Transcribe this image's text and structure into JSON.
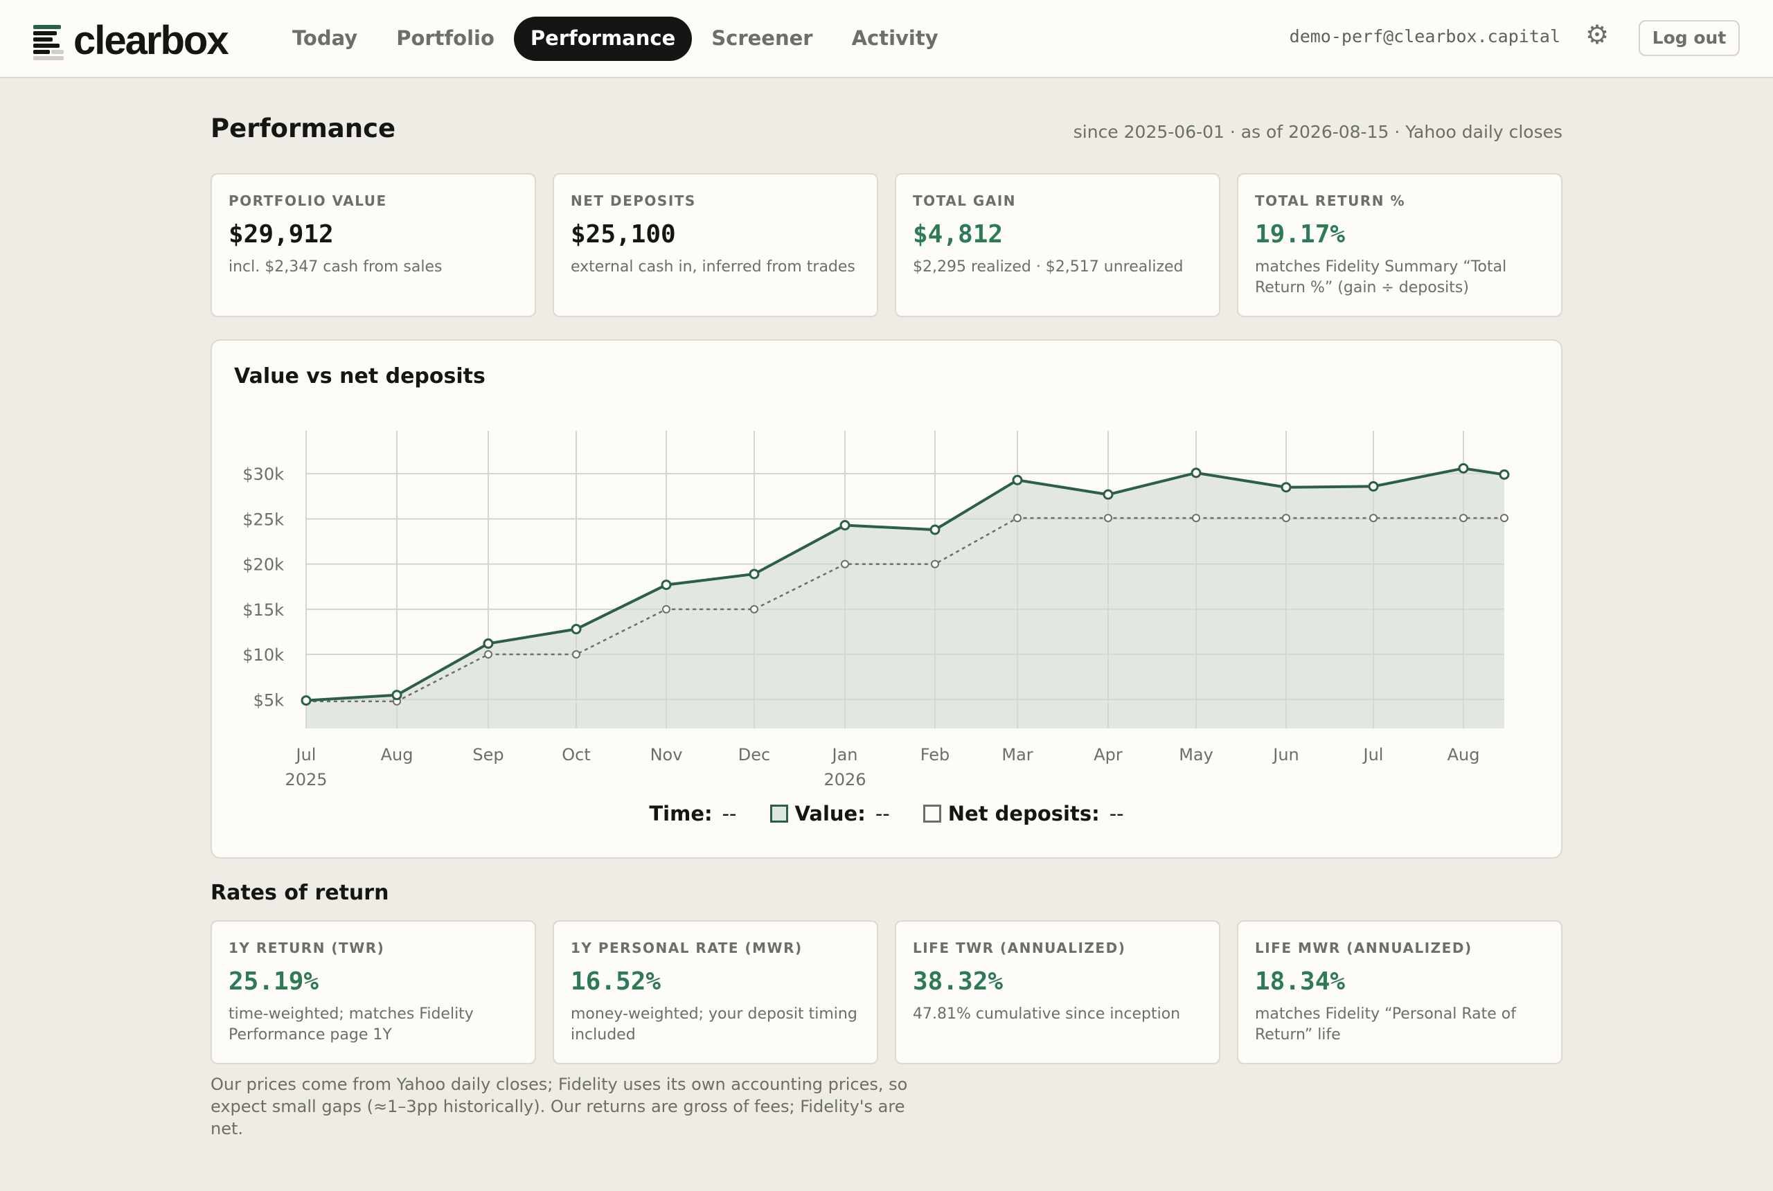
{
  "brand": {
    "name": "clearbox"
  },
  "nav": {
    "items": [
      {
        "label": "Today",
        "active": false
      },
      {
        "label": "Portfolio",
        "active": false
      },
      {
        "label": "Performance",
        "active": true
      },
      {
        "label": "Screener",
        "active": false
      },
      {
        "label": "Activity",
        "active": false
      }
    ]
  },
  "header": {
    "email": "demo-perf@clearbox.capital",
    "settings_icon": "gear-icon",
    "logout_label": "Log out"
  },
  "page": {
    "title": "Performance",
    "subtitle": "since 2025-06-01 · as of 2026-08-15 · Yahoo daily closes"
  },
  "summary_cards": [
    {
      "label": "PORTFOLIO VALUE",
      "value": "$29,912",
      "note": "incl. $2,347 cash from sales",
      "green": false
    },
    {
      "label": "NET DEPOSITS",
      "value": "$25,100",
      "note": "external cash in, inferred from trades",
      "green": false
    },
    {
      "label": "TOTAL GAIN",
      "value": "$4,812",
      "note": "$2,295 realized · $2,517 unrealized",
      "green": true
    },
    {
      "label": "TOTAL RETURN %",
      "value": "19.17%",
      "note": "matches Fidelity Summary “Total Return %” (gain ÷ deposits)",
      "green": true
    }
  ],
  "chart": {
    "title": "Value vs net deposits",
    "legend": {
      "time_label": "Time:",
      "time_value": "--",
      "value_label": "Value:",
      "value_value": "--",
      "deposits_label": "Net deposits:",
      "deposits_value": "--"
    }
  },
  "chart_data": {
    "type": "line",
    "x": [
      "2025-07",
      "2025-08",
      "2025-09",
      "2025-10",
      "2025-11",
      "2025-12",
      "2026-01",
      "2026-02",
      "2026-03",
      "2026-04",
      "2026-05",
      "2026-06",
      "2026-07",
      "2026-08",
      "2026-08-15"
    ],
    "x_tick_labels": [
      "Jul",
      "Aug",
      "Sep",
      "Oct",
      "Nov",
      "Dec",
      "Jan",
      "Feb",
      "Mar",
      "Apr",
      "May",
      "Jun",
      "Jul",
      "Aug"
    ],
    "x_year_labels": [
      "2025",
      "2026"
    ],
    "y_tick_labels": [
      "$5k",
      "$10k",
      "$15k",
      "$20k",
      "$25k",
      "$30k"
    ],
    "y_ticks": [
      5000,
      10000,
      15000,
      20000,
      25000,
      30000
    ],
    "ylim": [
      1800,
      34000
    ],
    "series": [
      {
        "name": "Value",
        "values": [
          4900,
          5500,
          11200,
          12800,
          17700,
          18900,
          24300,
          23800,
          29300,
          27700,
          30100,
          28500,
          28600,
          30600,
          29912
        ],
        "style": "solid",
        "fill": true,
        "color": "#2c5f49"
      },
      {
        "name": "Net deposits",
        "values": [
          4800,
          4800,
          10000,
          10000,
          15000,
          15000,
          20000,
          20000,
          25100,
          25100,
          25100,
          25100,
          25100,
          25100,
          25100
        ],
        "style": "dashed",
        "fill": false,
        "color": "#6b6f66"
      }
    ],
    "grid": true
  },
  "rates": {
    "title": "Rates of return",
    "cards": [
      {
        "label": "1Y RETURN (TWR)",
        "value": "25.19%",
        "note": "time-weighted; matches Fidelity Performance page 1Y",
        "green": true
      },
      {
        "label": "1Y PERSONAL RATE (MWR)",
        "value": "16.52%",
        "note": "money-weighted; your deposit timing included",
        "green": true
      },
      {
        "label": "LIFE TWR (ANNUALIZED)",
        "value": "38.32%",
        "note": "47.81% cumulative since inception",
        "green": true
      },
      {
        "label": "LIFE MWR (ANNUALIZED)",
        "value": "18.34%",
        "note": "matches Fidelity “Personal Rate of Return” life",
        "green": true
      }
    ]
  },
  "footnote": "Our prices come from Yahoo daily closes; Fidelity uses its own accounting prices, so expect small gaps (≈1–3pp historically). Our returns are gross of fees; Fidelity's are net.",
  "colors": {
    "accent": "#2c5f49",
    "gain": "#2e7a55",
    "background": "#eeece5",
    "card": "#fdfcf8"
  }
}
